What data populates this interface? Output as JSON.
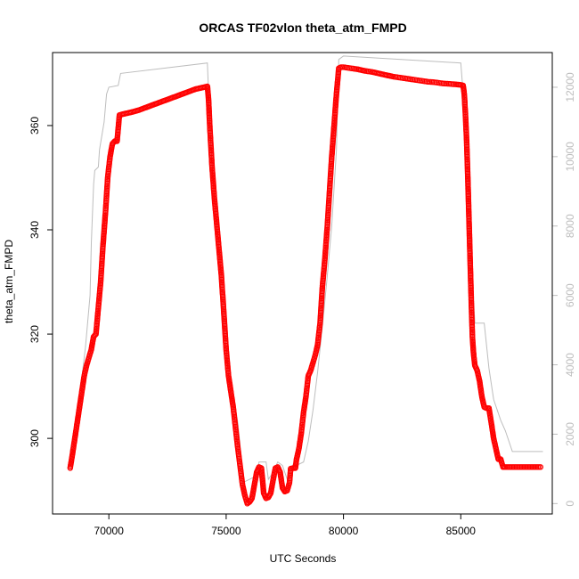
{
  "chart_data": {
    "type": "scatter",
    "title": "ORCAS TF02vlon theta_atm_FMPD",
    "xlabel": "UTC Seconds",
    "ylabel": "theta_atm_FMPD",
    "xlim": [
      67600,
      88900
    ],
    "ylim": [
      285.5,
      374.0
    ],
    "y2lim": [
      -300,
      13000
    ],
    "x_ticks": [
      70000,
      75000,
      80000,
      85000
    ],
    "y_ticks": [
      300,
      320,
      340,
      360
    ],
    "y2_ticks": [
      0,
      2000,
      4000,
      6000,
      8000,
      10000,
      12000
    ],
    "series": [
      {
        "role": "theta_atm_FMPD",
        "style": "open-circles",
        "color": "#ff0000",
        "points": [
          [
            68350,
            294.3
          ],
          [
            68450,
            297
          ],
          [
            68550,
            300
          ],
          [
            68650,
            303
          ],
          [
            68750,
            306
          ],
          [
            68850,
            309
          ],
          [
            68950,
            312
          ],
          [
            69050,
            314
          ],
          [
            69150,
            315.5
          ],
          [
            69250,
            317
          ],
          [
            69350,
            319.5
          ],
          [
            69450,
            320
          ],
          [
            69550,
            325
          ],
          [
            69650,
            330
          ],
          [
            69750,
            337
          ],
          [
            69850,
            343
          ],
          [
            69950,
            350
          ],
          [
            70050,
            354
          ],
          [
            70150,
            356.5
          ],
          [
            70250,
            357
          ],
          [
            70350,
            357
          ],
          [
            70450,
            362
          ],
          [
            70600,
            362.2
          ],
          [
            70800,
            362.4
          ],
          [
            71000,
            362.6
          ],
          [
            71300,
            363
          ],
          [
            71600,
            363.5
          ],
          [
            71900,
            364
          ],
          [
            72200,
            364.5
          ],
          [
            72500,
            365
          ],
          [
            72800,
            365.5
          ],
          [
            73100,
            366
          ],
          [
            73400,
            366.5
          ],
          [
            73700,
            367
          ],
          [
            74000,
            367.3
          ],
          [
            74200,
            367.5
          ],
          [
            74250,
            365
          ],
          [
            74300,
            360
          ],
          [
            74400,
            352
          ],
          [
            74500,
            346
          ],
          [
            74600,
            341
          ],
          [
            74700,
            336
          ],
          [
            74800,
            331
          ],
          [
            74900,
            324
          ],
          [
            75000,
            317
          ],
          [
            75100,
            312
          ],
          [
            75200,
            309
          ],
          [
            75300,
            306
          ],
          [
            75400,
            302
          ],
          [
            75500,
            298
          ],
          [
            75600,
            294.5
          ],
          [
            75700,
            291
          ],
          [
            75800,
            289
          ],
          [
            75900,
            287.5
          ],
          [
            76000,
            287.8
          ],
          [
            76100,
            288.5
          ],
          [
            76200,
            291
          ],
          [
            76300,
            293.5
          ],
          [
            76400,
            294.5
          ],
          [
            76500,
            294.3
          ],
          [
            76550,
            292
          ],
          [
            76600,
            289.5
          ],
          [
            76700,
            288.5
          ],
          [
            76800,
            288.7
          ],
          [
            76900,
            289.5
          ],
          [
            77000,
            292
          ],
          [
            77100,
            294.3
          ],
          [
            77200,
            294.5
          ],
          [
            77300,
            293.5
          ],
          [
            77400,
            290.5
          ],
          [
            77500,
            289.8
          ],
          [
            77600,
            290
          ],
          [
            77700,
            291.5
          ],
          [
            77750,
            294.2
          ],
          [
            77850,
            294.3
          ],
          [
            77950,
            294.3
          ],
          [
            78000,
            296
          ],
          [
            78100,
            298
          ],
          [
            78200,
            301
          ],
          [
            78300,
            305
          ],
          [
            78400,
            308
          ],
          [
            78500,
            312
          ],
          [
            78600,
            313
          ],
          [
            78700,
            314.5
          ],
          [
            78800,
            316
          ],
          [
            78900,
            318
          ],
          [
            79000,
            322
          ],
          [
            79100,
            329
          ],
          [
            79200,
            334
          ],
          [
            79300,
            340
          ],
          [
            79400,
            347
          ],
          [
            79500,
            354
          ],
          [
            79600,
            360
          ],
          [
            79700,
            366
          ],
          [
            79800,
            371
          ],
          [
            79900,
            371.2
          ],
          [
            80000,
            371.2
          ],
          [
            80300,
            371
          ],
          [
            80600,
            370.8
          ],
          [
            80900,
            370.5
          ],
          [
            81200,
            370.3
          ],
          [
            81500,
            370
          ],
          [
            81800,
            369.7
          ],
          [
            82100,
            369.4
          ],
          [
            82400,
            369.2
          ],
          [
            82700,
            369
          ],
          [
            83000,
            368.8
          ],
          [
            83300,
            368.6
          ],
          [
            83600,
            368.4
          ],
          [
            83900,
            368.3
          ],
          [
            84200,
            368.1
          ],
          [
            84500,
            368
          ],
          [
            84800,
            367.9
          ],
          [
            85000,
            367.8
          ],
          [
            85100,
            367.7
          ],
          [
            85150,
            366
          ],
          [
            85200,
            362
          ],
          [
            85250,
            357
          ],
          [
            85300,
            350
          ],
          [
            85350,
            342
          ],
          [
            85400,
            334
          ],
          [
            85450,
            326
          ],
          [
            85500,
            319
          ],
          [
            85550,
            316
          ],
          [
            85600,
            314
          ],
          [
            85700,
            313
          ],
          [
            85800,
            311
          ],
          [
            85900,
            308
          ],
          [
            86000,
            306
          ],
          [
            86100,
            305.8
          ],
          [
            86200,
            305.8
          ],
          [
            86300,
            303
          ],
          [
            86400,
            300
          ],
          [
            86500,
            298
          ],
          [
            86600,
            296
          ],
          [
            86700,
            296
          ],
          [
            86800,
            294.5
          ],
          [
            86900,
            294.5
          ],
          [
            87200,
            294.5
          ],
          [
            87600,
            294.5
          ],
          [
            88000,
            294.5
          ],
          [
            88400,
            294.5
          ]
        ]
      },
      {
        "role": "altitude (right axis)",
        "style": "line",
        "color": "#bdbdbd",
        "points": [
          [
            68350,
            1500
          ],
          [
            68700,
            2800
          ],
          [
            69000,
            4500
          ],
          [
            69200,
            6000
          ],
          [
            69250,
            7500
          ],
          [
            69350,
            9200
          ],
          [
            69400,
            9600
          ],
          [
            69550,
            9700
          ],
          [
            69600,
            10200
          ],
          [
            69800,
            11000
          ],
          [
            69900,
            11800
          ],
          [
            70000,
            12000
          ],
          [
            70400,
            12050
          ],
          [
            70500,
            12400
          ],
          [
            74200,
            12700
          ],
          [
            74300,
            11000
          ],
          [
            74500,
            8800
          ],
          [
            74700,
            7000
          ],
          [
            74900,
            5000
          ],
          [
            75100,
            4000
          ],
          [
            75300,
            3200
          ],
          [
            75500,
            2300
          ],
          [
            75650,
            1300
          ],
          [
            75700,
            600
          ],
          [
            76000,
            700
          ],
          [
            76300,
            800
          ],
          [
            76400,
            1200
          ],
          [
            76700,
            1200
          ],
          [
            76800,
            700
          ],
          [
            77000,
            900
          ],
          [
            77200,
            1200
          ],
          [
            77400,
            1100
          ],
          [
            77600,
            700
          ],
          [
            77700,
            900
          ],
          [
            77900,
            1200
          ],
          [
            78000,
            1100
          ],
          [
            78300,
            1200
          ],
          [
            78500,
            1800
          ],
          [
            78700,
            2700
          ],
          [
            78900,
            3800
          ],
          [
            79100,
            5100
          ],
          [
            79300,
            6500
          ],
          [
            79500,
            8000
          ],
          [
            79700,
            10200
          ],
          [
            79800,
            12800
          ],
          [
            80000,
            12900
          ],
          [
            85000,
            12700
          ],
          [
            85200,
            11000
          ],
          [
            85300,
            9500
          ],
          [
            85400,
            7600
          ],
          [
            85600,
            5200
          ],
          [
            86000,
            5200
          ],
          [
            86200,
            3900
          ],
          [
            86400,
            3000
          ],
          [
            86700,
            2400
          ],
          [
            86900,
            2100
          ],
          [
            87200,
            1500
          ],
          [
            88500,
            1500
          ]
        ]
      }
    ]
  }
}
